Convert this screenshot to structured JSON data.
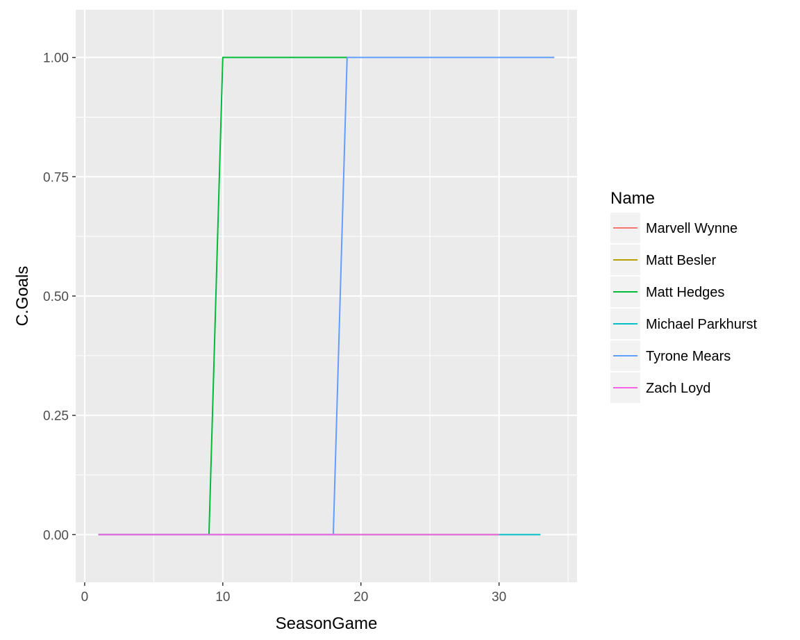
{
  "chart_data": {
    "type": "line",
    "title": "",
    "xlabel": "SeasonGame",
    "ylabel": "C.Goals",
    "xlim": [
      -0.65,
      35.65
    ],
    "ylim": [
      -0.1,
      1.1
    ],
    "x_ticks": [
      0,
      10,
      20,
      30
    ],
    "x_tick_labels": [
      "0",
      "10",
      "20",
      "30"
    ],
    "x_minor_ticks": [
      5,
      15,
      25,
      35
    ],
    "y_ticks": [
      0,
      0.25,
      0.5,
      0.75,
      1.0
    ],
    "y_tick_labels": [
      "0.00",
      "0.25",
      "0.50",
      "0.75",
      "1.00"
    ],
    "y_minor_ticks": [
      0.125,
      0.375,
      0.625,
      0.875
    ],
    "grid": true,
    "legend_title": "Name",
    "legend_position": "right",
    "series": [
      {
        "name": "Marvell Wynne",
        "color": "#F8766D",
        "x": [
          1,
          30
        ],
        "y": [
          0,
          0
        ]
      },
      {
        "name": "Matt Besler",
        "color": "#B79F00",
        "x": [
          1,
          30
        ],
        "y": [
          0,
          0
        ]
      },
      {
        "name": "Matt Hedges",
        "color": "#00BA38",
        "x": [
          1,
          9,
          10,
          19
        ],
        "y": [
          0,
          0,
          1,
          1
        ]
      },
      {
        "name": "Michael Parkhurst",
        "color": "#00BFC4",
        "x": [
          1,
          33
        ],
        "y": [
          0,
          0
        ]
      },
      {
        "name": "Tyrone Mears",
        "color": "#619CFF",
        "x": [
          1,
          18,
          19,
          34
        ],
        "y": [
          0,
          0,
          1,
          1
        ]
      },
      {
        "name": "Zach Loyd",
        "color": "#F564E3",
        "x": [
          1,
          30
        ],
        "y": [
          0,
          0
        ]
      }
    ]
  }
}
